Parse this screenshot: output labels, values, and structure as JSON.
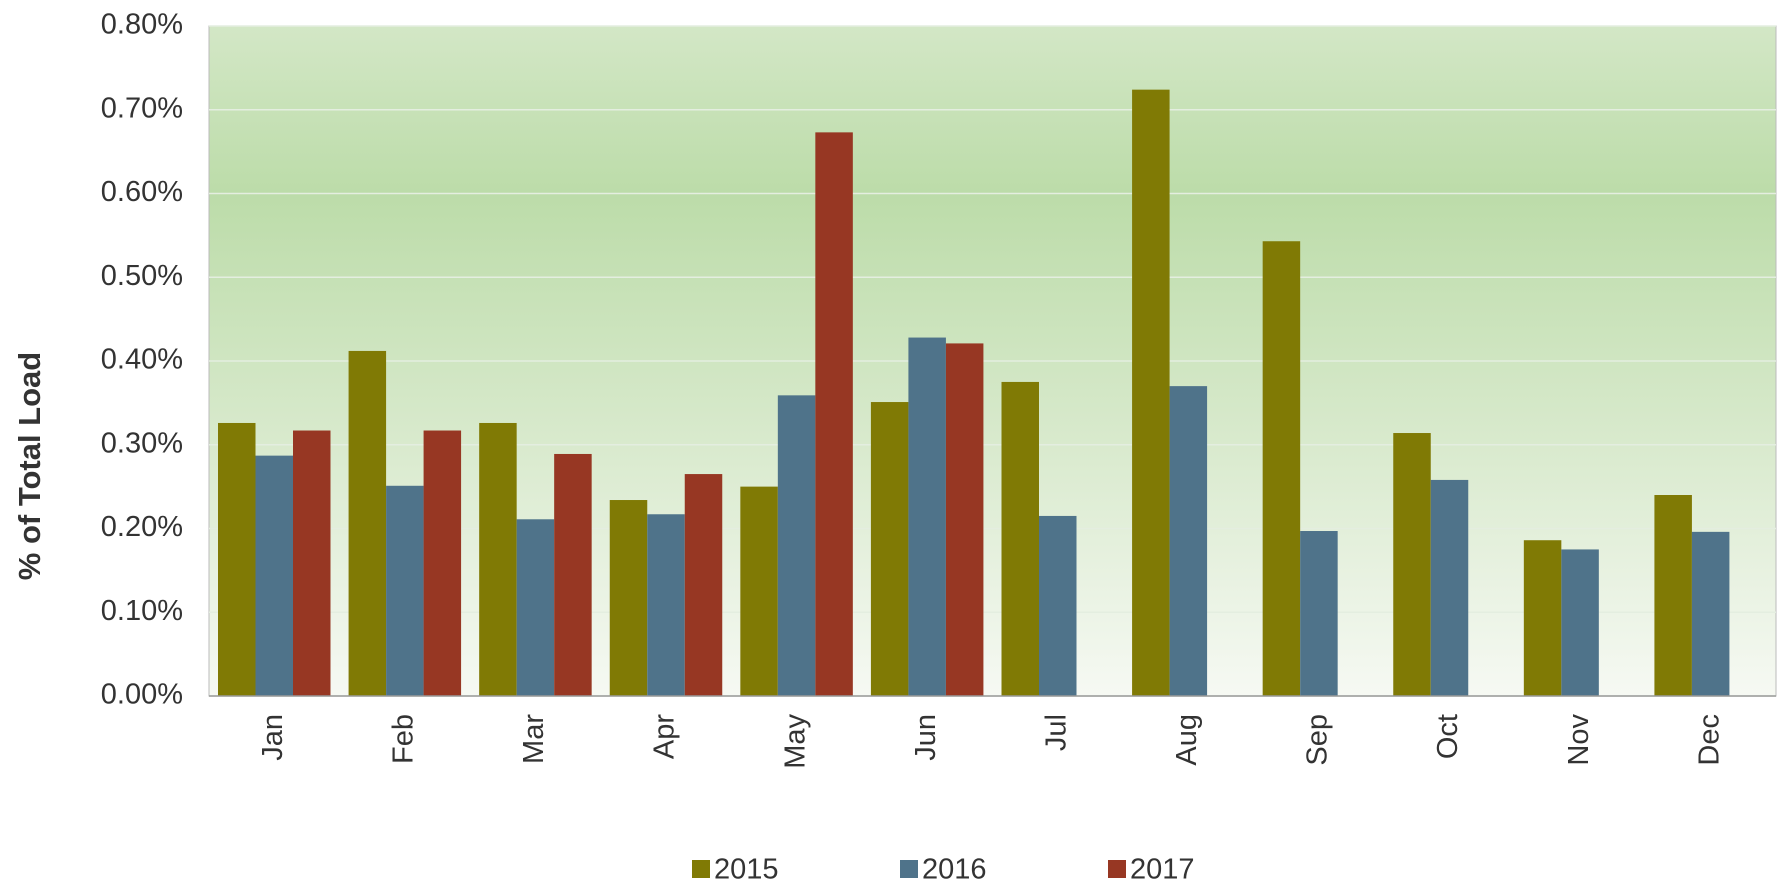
{
  "chart_data": {
    "type": "bar",
    "y_label": "% of Total Load",
    "categories": [
      "Jan",
      "Feb",
      "Mar",
      "Apr",
      "May",
      "Jun",
      "Jul",
      "Aug",
      "Sep",
      "Oct",
      "Nov",
      "Dec"
    ],
    "series": [
      {
        "name": "2015",
        "color": "#807a05",
        "values": [
          0.326,
          0.412,
          0.326,
          0.234,
          0.25,
          0.351,
          0.375,
          0.724,
          0.543,
          0.314,
          0.186,
          0.24
        ]
      },
      {
        "name": "2016",
        "color": "#4f738a",
        "values": [
          0.287,
          0.251,
          0.211,
          0.217,
          0.359,
          0.428,
          0.215,
          0.37,
          0.197,
          0.258,
          0.175,
          0.196
        ]
      },
      {
        "name": "2017",
        "color": "#973723",
        "values": [
          0.317,
          0.317,
          0.289,
          0.265,
          0.673,
          0.421,
          null,
          null,
          null,
          null,
          null,
          null
        ]
      }
    ],
    "ylim": [
      0,
      0.8
    ],
    "yticks": [
      {
        "value": 0,
        "label": "0.00%"
      },
      {
        "value": 0.1,
        "label": "0.10%"
      },
      {
        "value": 0.2,
        "label": "0.20%"
      },
      {
        "value": 0.3,
        "label": "0.30%"
      },
      {
        "value": 0.4,
        "label": "0.40%"
      },
      {
        "value": 0.5,
        "label": "0.50%"
      },
      {
        "value": 0.6,
        "label": "0.60%"
      },
      {
        "value": 0.7,
        "label": "0.70%"
      },
      {
        "value": 0.8,
        "label": "0.80%"
      }
    ],
    "grid": true,
    "legend": "bottom"
  }
}
